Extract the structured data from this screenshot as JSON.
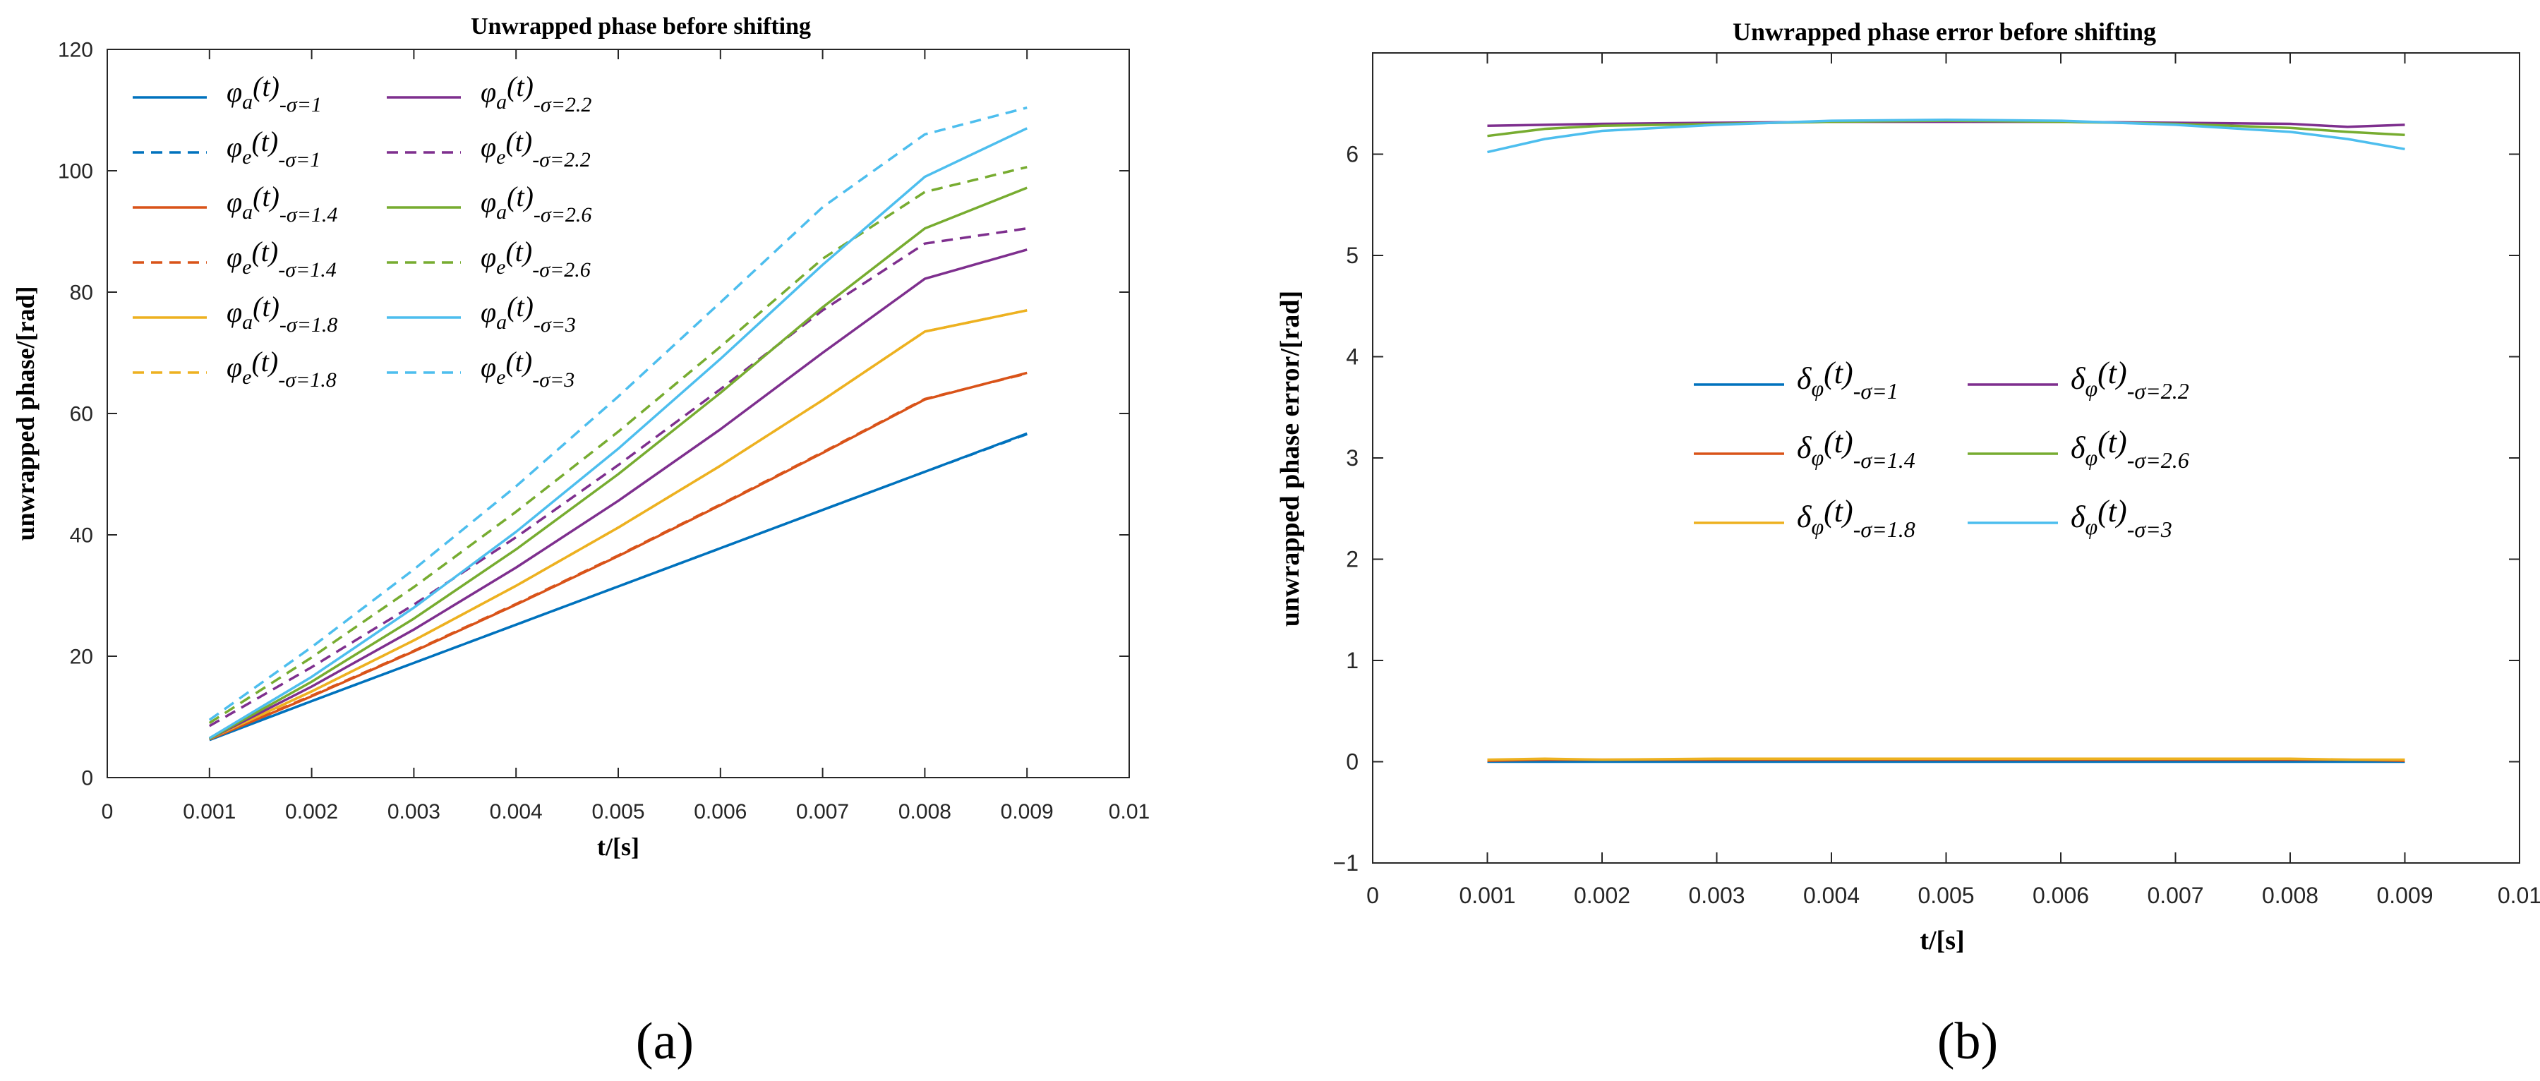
{
  "colors": {
    "blue": "#0072BD",
    "orange": "#D95319",
    "yellow": "#EDB120",
    "purple": "#7E2F8E",
    "green": "#77AC30",
    "cyan": "#4DBEEE"
  },
  "chart_data": [
    {
      "type": "line",
      "title": "Unwrapped phase before shifting",
      "xlabel": "t/[s]",
      "ylabel": "unwrapped phase/[rad]",
      "xlim": [
        0,
        0.01
      ],
      "ylim": [
        0,
        120
      ],
      "xticks": [
        "0",
        "0.001",
        "0.002",
        "0.003",
        "0.004",
        "0.005",
        "0.006",
        "0.007",
        "0.008",
        "0.009",
        "0.01"
      ],
      "yticks": [
        "0",
        "20",
        "40",
        "60",
        "80",
        "100",
        "120"
      ],
      "grid": false,
      "legend_position": "top-left",
      "x": [
        0.001,
        0.002,
        0.003,
        0.004,
        0.005,
        0.006,
        0.007,
        0.008,
        0.009
      ],
      "series": [
        {
          "name": "σ=1, φa(t)",
          "legend": {
            "sym": "φ",
            "sub": "a",
            "arg": "(t)",
            "sig": "-σ=1"
          },
          "color": "blue",
          "dash": false,
          "values": [
            6.2,
            12.6,
            18.9,
            25.2,
            31.5,
            37.8,
            44.1,
            50.4,
            56.7
          ]
        },
        {
          "name": "σ=1, φe(t)",
          "legend": {
            "sym": "φ",
            "sub": "e",
            "arg": "(t)",
            "sig": "-σ=1"
          },
          "color": "blue",
          "dash": true,
          "values": [
            6.3,
            12.6,
            18.9,
            25.2,
            31.5,
            37.8,
            44.1,
            50.4,
            56.6
          ]
        },
        {
          "name": "σ=1.4, φa(t)",
          "legend": {
            "sym": "φ",
            "sub": "a",
            "arg": "(t)",
            "sig": "-σ=1.4"
          },
          "color": "orange",
          "dash": false,
          "values": [
            6.3,
            13.4,
            20.8,
            28.5,
            36.5,
            44.9,
            53.5,
            62.3,
            66.7
          ]
        },
        {
          "name": "σ=1.4, φe(t)",
          "legend": {
            "sym": "φ",
            "sub": "e",
            "arg": "(t)",
            "sig": "-σ=1.4"
          },
          "color": "orange",
          "dash": true,
          "values": [
            6.4,
            13.5,
            20.9,
            28.6,
            36.6,
            45.0,
            53.6,
            62.4,
            66.6
          ]
        },
        {
          "name": "σ=1.8, φa(t)",
          "legend": {
            "sym": "φ",
            "sub": "a",
            "arg": "(t)",
            "sig": "-σ=1.8"
          },
          "color": "yellow",
          "dash": false,
          "values": [
            6.4,
            14.2,
            22.6,
            31.6,
            41.2,
            51.4,
            62.2,
            73.5,
            77.0
          ]
        },
        {
          "name": "σ=1.8, φe(t)",
          "legend": {
            "sym": "φ",
            "sub": "e",
            "arg": "(t)",
            "sig": "-σ=1.8"
          },
          "color": "yellow",
          "dash": true,
          "values": [
            6.4,
            14.2,
            22.6,
            31.6,
            41.2,
            51.4,
            62.2,
            73.5,
            77.0
          ]
        },
        {
          "name": "σ=2.2, φa(t)",
          "legend": {
            "sym": "φ",
            "sub": "a",
            "arg": "(t)",
            "sig": "-σ=2.2"
          },
          "color": "purple",
          "dash": false,
          "values": [
            6.4,
            15.0,
            24.4,
            34.6,
            45.6,
            57.4,
            70.0,
            82.2,
            87.0
          ]
        },
        {
          "name": "σ=2.2, φe(t)",
          "legend": {
            "sym": "φ",
            "sub": "e",
            "arg": "(t)",
            "sig": "-σ=2.2"
          },
          "color": "purple",
          "dash": true,
          "values": [
            8.5,
            18.2,
            28.5,
            39.6,
            51.5,
            64.0,
            77.0,
            88.0,
            90.5
          ]
        },
        {
          "name": "σ=2.6, φa(t)",
          "legend": {
            "sym": "φ",
            "sub": "a",
            "arg": "(t)",
            "sig": "-σ=2.6"
          },
          "color": "green",
          "dash": false,
          "values": [
            6.4,
            15.8,
            26.2,
            37.6,
            50.0,
            63.4,
            77.5,
            90.5,
            97.2
          ]
        },
        {
          "name": "σ=2.6, φe(t)",
          "legend": {
            "sym": "φ",
            "sub": "e",
            "arg": "(t)",
            "sig": "-σ=2.6"
          },
          "color": "green",
          "dash": true,
          "values": [
            9.0,
            19.8,
            31.4,
            43.8,
            57.0,
            71.0,
            85.5,
            96.5,
            100.6
          ]
        },
        {
          "name": "σ=3, φa(t)",
          "legend": {
            "sym": "φ",
            "sub": "a",
            "arg": "(t)",
            "sig": "-σ=3"
          },
          "color": "cyan",
          "dash": false,
          "values": [
            6.5,
            16.6,
            28.0,
            40.5,
            54.2,
            69.0,
            84.5,
            99.0,
            107.0
          ]
        },
        {
          "name": "σ=3, φe(t)",
          "legend": {
            "sym": "φ",
            "sub": "e",
            "arg": "(t)",
            "sig": "-σ=3"
          },
          "color": "cyan",
          "dash": true,
          "values": [
            9.5,
            21.5,
            34.3,
            48.0,
            62.8,
            78.3,
            94.0,
            106.0,
            110.4
          ]
        }
      ],
      "caption": "(a)"
    },
    {
      "type": "line",
      "title": "Unwrapped phase error before shifting",
      "xlabel": "t/[s]",
      "ylabel": "unwrapped phase error/[rad]",
      "xlim": [
        0,
        0.01
      ],
      "ylim": [
        -1,
        7
      ],
      "xticks": [
        "0",
        "0.001",
        "0.002",
        "0.003",
        "0.004",
        "0.005",
        "0.006",
        "0.007",
        "0.008",
        "0.009",
        "0.01"
      ],
      "yticks": [
        "−1",
        "0",
        "1",
        "2",
        "3",
        "4",
        "5",
        "6"
      ],
      "grid": false,
      "legend_position": "center",
      "x": [
        0.001,
        0.0015,
        0.002,
        0.003,
        0.004,
        0.005,
        0.006,
        0.007,
        0.008,
        0.0085,
        0.009
      ],
      "series": [
        {
          "name": "δφ(t) σ=1",
          "legend": {
            "sym": "δ",
            "sub": "φ",
            "arg": "(t)",
            "sig": "-σ=1"
          },
          "color": "blue",
          "values": [
            0.0,
            0.0,
            0.0,
            0.0,
            0.0,
            0.0,
            0.0,
            0.0,
            0.0,
            0.0,
            0.0
          ]
        },
        {
          "name": "δφ(t) σ=1.4",
          "legend": {
            "sym": "δ",
            "sub": "φ",
            "arg": "(t)",
            "sig": "-σ=1.4"
          },
          "color": "orange",
          "values": [
            0.01,
            0.02,
            0.02,
            0.02,
            0.02,
            0.02,
            0.02,
            0.02,
            0.02,
            0.02,
            0.01
          ]
        },
        {
          "name": "δφ(t) σ=1.8",
          "legend": {
            "sym": "δ",
            "sub": "φ",
            "arg": "(t)",
            "sig": "-σ=1.8"
          },
          "color": "yellow",
          "values": [
            0.02,
            0.03,
            0.02,
            0.03,
            0.03,
            0.03,
            0.03,
            0.03,
            0.03,
            0.02,
            0.02
          ]
        },
        {
          "name": "δφ(t) σ=2.2",
          "legend": {
            "sym": "δ",
            "sub": "φ",
            "arg": "(t)",
            "sig": "-σ=2.2"
          },
          "color": "purple",
          "values": [
            6.28,
            6.29,
            6.3,
            6.31,
            6.32,
            6.32,
            6.32,
            6.31,
            6.3,
            6.27,
            6.29
          ]
        },
        {
          "name": "δφ(t) σ=2.6",
          "legend": {
            "sym": "δ",
            "sub": "φ",
            "arg": "(t)",
            "sig": "-σ=2.6"
          },
          "color": "green",
          "values": [
            6.18,
            6.25,
            6.28,
            6.3,
            6.32,
            6.33,
            6.32,
            6.3,
            6.26,
            6.22,
            6.19
          ]
        },
        {
          "name": "δφ(t) σ=3",
          "legend": {
            "sym": "δ",
            "sub": "φ",
            "arg": "(t)",
            "sig": "-σ=3"
          },
          "color": "cyan",
          "values": [
            6.02,
            6.15,
            6.23,
            6.29,
            6.33,
            6.34,
            6.33,
            6.29,
            6.22,
            6.15,
            6.05
          ]
        }
      ],
      "caption": "(b)"
    }
  ]
}
